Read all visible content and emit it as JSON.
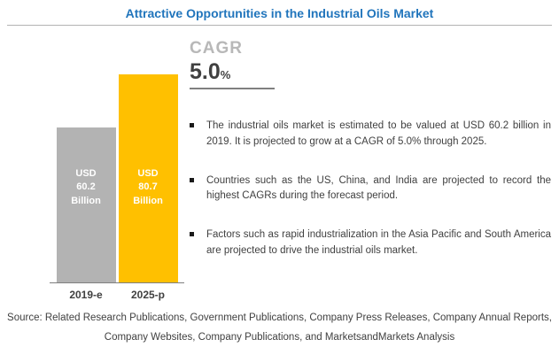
{
  "title": "Attractive Opportunities in the Industrial Oils Market",
  "chart_data": {
    "type": "bar",
    "categories": [
      "2019-e",
      "2025-p"
    ],
    "values": [
      60.2,
      80.7
    ],
    "bar_labels": [
      "USD\n60.2\nBillion",
      "USD\n80.7\nBillion"
    ],
    "bar_colors": [
      "#b3b3b3",
      "#ffc000"
    ],
    "title": "Attractive Opportunities in the Industrial Oils Market",
    "xlabel": "",
    "ylabel": "",
    "ylim": [
      0,
      85
    ],
    "grid": false,
    "legend": "none",
    "units": "USD Billion"
  },
  "cagr": {
    "label": "CAGR",
    "value": "5.0",
    "unit": "%"
  },
  "bullets": [
    "The industrial oils market is estimated to be valued at USD 60.2 billion in 2019. It is projected to grow at a CAGR of 5.0% through 2025.",
    "Countries such as the US, China, and India are projected to record the highest CAGRs during the forecast period.",
    "Factors such as rapid industrialization in the Asia Pacific and South America are projected to drive the industrial oils market."
  ],
  "source": "Source: Related Research Publications, Government Publications, Company Press Releases, Company Annual Reports, Company Websites, Company Publications, and MarketsandMarkets Analysis"
}
